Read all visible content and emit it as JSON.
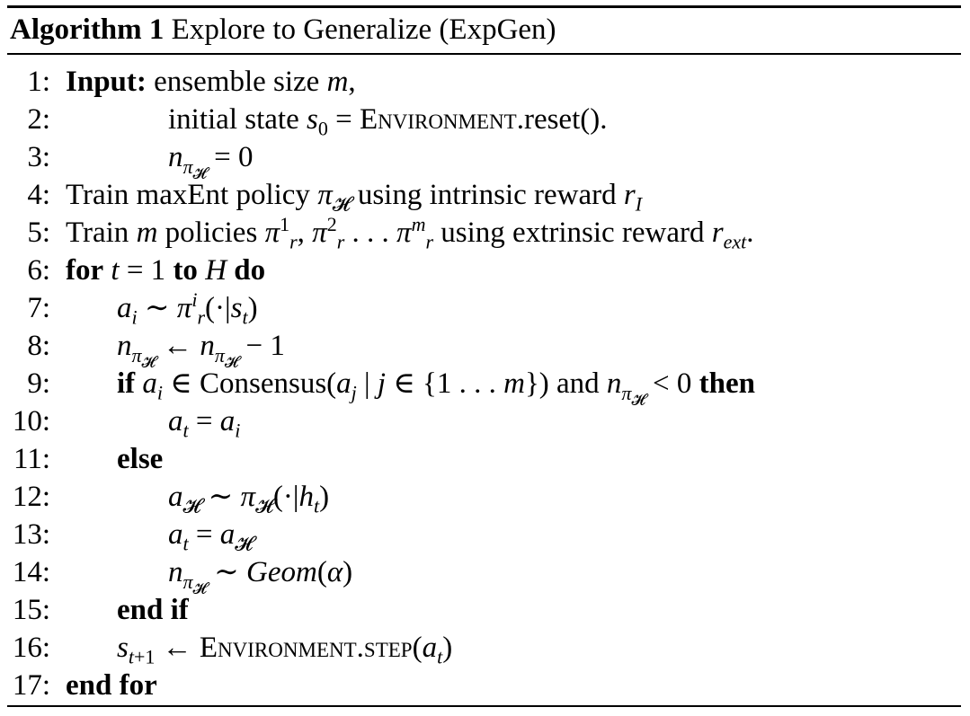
{
  "algorithm": {
    "label": "Algorithm 1",
    "title": "Explore to Generalize (ExpGen)"
  },
  "lines": [
    {
      "no": "1:",
      "text": "Input: ensemble size m,"
    },
    {
      "no": "2:",
      "text": "initial state s0 = Environment.reset()."
    },
    {
      "no": "3:",
      "text": "nπH = 0"
    },
    {
      "no": "4:",
      "text": "Train maxEnt policy πH using intrinsic reward rI"
    },
    {
      "no": "5:",
      "text": "Train m policies πr1, πr2 . . . πrm using extrinsic reward rext."
    },
    {
      "no": "6:",
      "text": "for t = 1 to H do"
    },
    {
      "no": "7:",
      "text": "ai ∼ πri(·|st)"
    },
    {
      "no": "8:",
      "text": "nπH ← nπH − 1"
    },
    {
      "no": "9:",
      "text": "if ai ∈ Consensus(aj | j ∈ {1 . . . m}) and nπH < 0 then"
    },
    {
      "no": "10:",
      "text": "at = ai"
    },
    {
      "no": "11:",
      "text": "else"
    },
    {
      "no": "12:",
      "text": "aH ∼ πH(·|ht)"
    },
    {
      "no": "13:",
      "text": "at = aH"
    },
    {
      "no": "14:",
      "text": "nπH ∼ Geom(α)"
    },
    {
      "no": "15:",
      "text": "end if"
    },
    {
      "no": "16:",
      "text": "st+1 ← Environment.step(at)"
    },
    {
      "no": "17:",
      "text": "end for"
    }
  ]
}
